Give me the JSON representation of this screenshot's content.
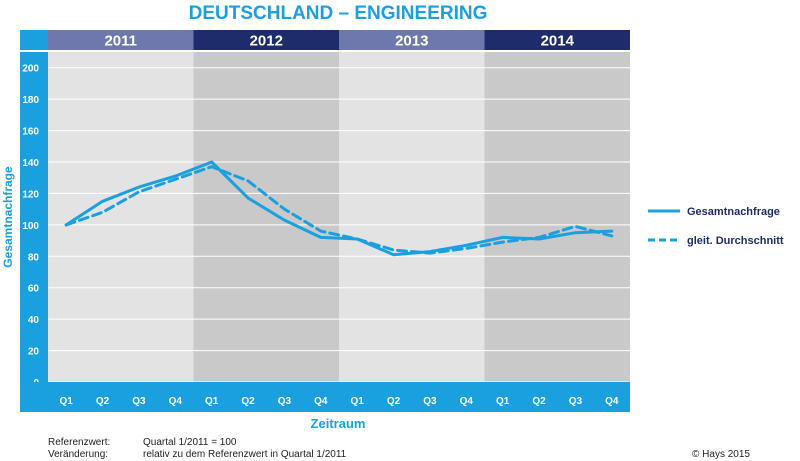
{
  "colors": {
    "accent": "#1aa0de",
    "header_light": "#6e78ad",
    "header_dark": "#1f2c6c",
    "band_light": "#e3e3e3",
    "band_dark": "#c9c9c9"
  },
  "chart_data": {
    "type": "line",
    "title": "DEUTSCHLAND – ENGINEERING",
    "xlabel": "Zeitraum",
    "ylabel": "Gesamtnachfrage",
    "ylim": [
      0,
      210
    ],
    "yticks": [
      0,
      20,
      40,
      60,
      80,
      100,
      120,
      140,
      160,
      180,
      200
    ],
    "years": [
      "2011",
      "2012",
      "2013",
      "2014"
    ],
    "categories": [
      "Q1",
      "Q2",
      "Q3",
      "Q4",
      "Q1",
      "Q2",
      "Q3",
      "Q4",
      "Q1",
      "Q2",
      "Q3",
      "Q4",
      "Q1",
      "Q2",
      "Q3",
      "Q4"
    ],
    "series": [
      {
        "name": "Gesamtnachfrage",
        "style": "solid",
        "values": [
          100,
          115,
          124,
          131,
          140,
          117,
          103,
          92,
          91,
          81,
          83,
          87,
          92,
          91,
          95,
          96
        ]
      },
      {
        "name": "gleit. Durchschnitt",
        "style": "dashed",
        "values": [
          100,
          108,
          121,
          129,
          137,
          128,
          110,
          96,
          91,
          84,
          82,
          85,
          89,
          92,
          99,
          93
        ]
      }
    ]
  },
  "footer": {
    "ref_label": "Referenzwert:",
    "ref_value": "Quartal 1/2011 = 100",
    "change_label": "Veränderung:",
    "change_value": "relativ zu dem Referenzwert in Quartal 1/2011",
    "copyright": "© Hays 2015"
  }
}
